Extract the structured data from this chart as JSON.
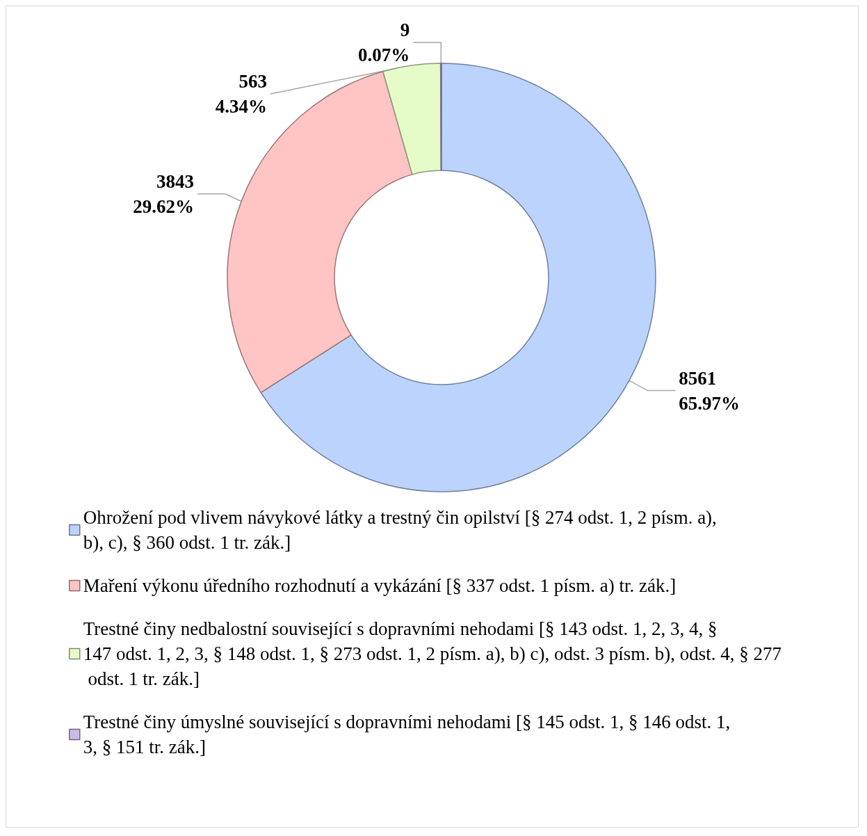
{
  "chart_data": {
    "type": "donut",
    "categories": [
      "Ohrožení pod vlivem návykové látky a trestný čin opilství [§ 274 odst. 1, 2 písm. a), b), c), § 360 odst. 1 tr. zák.]",
      "Maření výkonu úředního rozhodnutí a vykázání [§ 337 odst. 1 písm. a) tr. zák.]",
      "Trestné činy nedbalostní související s dopravními nehodami [§ 143 odst. 1, 2, 3, 4, § 147 odst. 1, 2, 3, § 148 odst. 1, § 273 odst. 1, 2 písm. a), b) c), odst. 3 písm. b), odst. 4, § 277 odst. 1 tr. zák.]",
      "Trestné činy úmyslné související s dopravními nehodami [§ 145 odst. 1, § 146 odst. 1, 3, § 151 tr. zák.]"
    ],
    "values": [
      8561,
      3843,
      563,
      9
    ],
    "value_labels": [
      "8561\n65.97%",
      "3843\n29.62%",
      "563\n4.34%",
      "9\n0.07%"
    ],
    "colors": [
      "#bcd4fd",
      "#ffc4c4",
      "#e6fcc8",
      "#cbbbe6"
    ],
    "legend": "bottom"
  }
}
